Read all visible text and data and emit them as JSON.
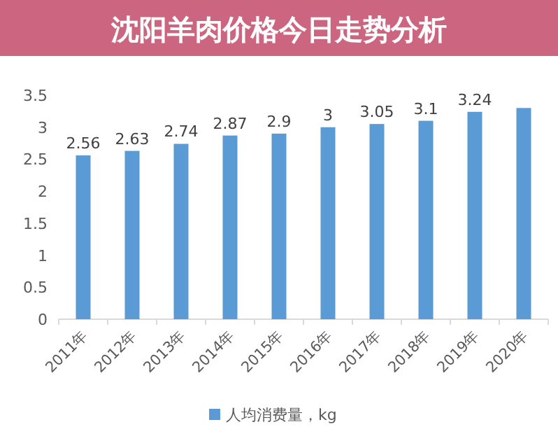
{
  "chart_data": {
    "type": "bar",
    "title": "沈阳羊肉价格今日走势分析",
    "categories": [
      "2011年",
      "2012年",
      "2013年",
      "2014年",
      "2015年",
      "2016年",
      "2017年",
      "2018年",
      "2019年",
      "2020年"
    ],
    "series": [
      {
        "name": "人均消费量，kg",
        "color": "#5b9bd5",
        "values": [
          2.56,
          2.63,
          2.74,
          2.87,
          2.9,
          3,
          3.05,
          3.1,
          3.24,
          3.3
        ],
        "value_labels": [
          "2.56",
          "2.63",
          "2.74",
          "2.87",
          "2.9",
          "3",
          "3.05",
          "3.1",
          "3.24",
          null
        ]
      }
    ],
    "ylim": [
      0,
      3.5
    ],
    "yticks": [
      0,
      0.5,
      1,
      1.5,
      2,
      2.5,
      3,
      3.5
    ],
    "grid": false,
    "legend": "bottom"
  }
}
